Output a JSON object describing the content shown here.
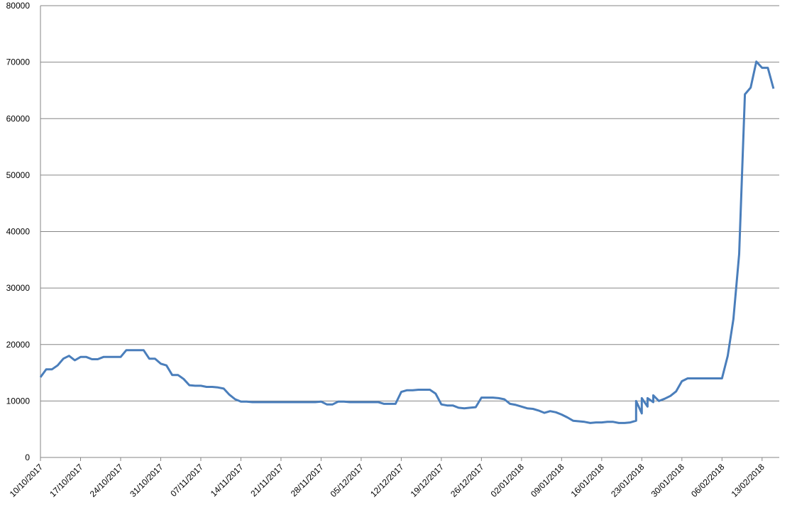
{
  "chart_data": {
    "type": "line",
    "color": "#4a7ebb",
    "grid": true,
    "x": [
      "10/10/2017",
      "11/10/2017",
      "12/10/2017",
      "13/10/2017",
      "14/10/2017",
      "15/10/2017",
      "16/10/2017",
      "17/10/2017",
      "18/10/2017",
      "19/10/2017",
      "20/10/2017",
      "21/10/2017",
      "22/10/2017",
      "23/10/2017",
      "24/10/2017",
      "25/10/2017",
      "26/10/2017",
      "27/10/2017",
      "28/10/2017",
      "29/10/2017",
      "30/10/2017",
      "31/10/2017",
      "01/11/2017",
      "02/11/2017",
      "03/11/2017",
      "04/11/2017",
      "05/11/2017",
      "06/11/2017",
      "07/11/2017",
      "08/11/2017",
      "09/11/2017",
      "10/11/2017",
      "11/11/2017",
      "12/11/2017",
      "13/11/2017",
      "14/11/2017",
      "15/11/2017",
      "16/11/2017",
      "17/11/2017",
      "18/11/2017",
      "19/11/2017",
      "20/11/2017",
      "21/11/2017",
      "22/11/2017",
      "23/11/2017",
      "24/11/2017",
      "25/11/2017",
      "26/11/2017",
      "27/11/2017",
      "28/11/2017",
      "29/11/2017",
      "30/11/2017",
      "01/12/2017",
      "02/12/2017",
      "03/12/2017",
      "04/12/2017",
      "05/12/2017",
      "06/12/2017",
      "07/12/2017",
      "08/12/2017",
      "09/12/2017",
      "10/12/2017",
      "11/12/2017",
      "12/12/2017",
      "13/12/2017",
      "14/12/2017",
      "15/12/2017",
      "16/12/2017",
      "17/12/2017",
      "18/12/2017",
      "19/12/2017",
      "20/12/2017",
      "21/12/2017",
      "22/12/2017",
      "23/12/2017",
      "24/12/2017",
      "25/12/2017",
      "26/12/2017",
      "27/12/2017",
      "28/12/2017",
      "29/12/2017",
      "30/12/2017",
      "31/12/2017",
      "01/01/2018",
      "02/01/2018",
      "03/01/2018",
      "04/01/2018",
      "05/01/2018",
      "06/01/2018",
      "07/01/2018",
      "08/01/2018",
      "09/01/2018",
      "10/01/2018",
      "11/01/2018",
      "12/01/2018",
      "13/01/2018",
      "14/01/2018",
      "15/01/2018",
      "16/01/2018",
      "17/01/2018",
      "18/01/2018",
      "19/01/2018",
      "20/01/2018",
      "21/01/2018",
      "22/01/2018",
      "22/01/2018",
      "23/01/2018",
      "23/01/2018",
      "24/01/2018",
      "24/01/2018",
      "25/01/2018",
      "25/01/2018",
      "26/01/2018",
      "27/01/2018",
      "28/01/2018",
      "29/01/2018",
      "30/01/2018",
      "31/01/2018",
      "01/02/2018",
      "02/02/2018",
      "03/02/2018",
      "04/02/2018",
      "05/02/2018",
      "06/02/2018",
      "07/02/2018",
      "08/02/2018",
      "09/02/2018",
      "10/02/2018",
      "11/02/2018",
      "12/02/2018",
      "13/02/2018",
      "14/02/2018",
      "15/02/2018"
    ],
    "values": [
      14200,
      15600,
      15600,
      16300,
      17500,
      18000,
      17200,
      17800,
      17800,
      17400,
      17400,
      17800,
      17800,
      17800,
      17800,
      19000,
      19000,
      19000,
      19000,
      17500,
      17500,
      16600,
      16300,
      14600,
      14600,
      13900,
      12800,
      12700,
      12700,
      12500,
      12500,
      12400,
      12200,
      11100,
      10300,
      9900,
      9900,
      9800,
      9800,
      9800,
      9800,
      9800,
      9800,
      9800,
      9800,
      9800,
      9800,
      9800,
      9800,
      9900,
      9400,
      9400,
      9900,
      9900,
      9800,
      9800,
      9800,
      9800,
      9800,
      9800,
      9500,
      9500,
      9500,
      11600,
      11900,
      11900,
      12000,
      12000,
      12000,
      11300,
      9400,
      9200,
      9200,
      8800,
      8700,
      8800,
      8900,
      10600,
      10600,
      10600,
      10500,
      10300,
      9500,
      9300,
      9000,
      8700,
      8600,
      8300,
      7900,
      8200,
      8000,
      7600,
      7100,
      6500,
      6400,
      6300,
      6100,
      6200,
      6200,
      6300,
      6300,
      6100,
      6100,
      6200,
      6500,
      10000,
      7800,
      10500,
      9000,
      10500,
      9800,
      11000,
      10000,
      10400,
      10900,
      11700,
      13500,
      14000,
      14000,
      14000,
      14000,
      14000,
      14000,
      14000,
      18000,
      24500,
      36000,
      64300,
      65500,
      70100,
      69000,
      69000,
      65300
    ],
    "xlim": [
      "10/10/2017",
      "16/02/2018"
    ],
    "xticks": [
      "10/10/2017",
      "17/10/2017",
      "24/10/2017",
      "31/10/2017",
      "07/11/2017",
      "14/11/2017",
      "21/11/2017",
      "28/11/2017",
      "05/12/2017",
      "12/12/2017",
      "19/12/2017",
      "26/12/2017",
      "02/01/2018",
      "09/01/2018",
      "16/01/2018",
      "23/01/2018",
      "30/01/2018",
      "06/02/2018",
      "13/02/2018"
    ],
    "ylim": [
      0,
      80000
    ],
    "yticks": [
      0,
      10000,
      20000,
      30000,
      40000,
      50000,
      60000,
      70000,
      80000
    ]
  }
}
